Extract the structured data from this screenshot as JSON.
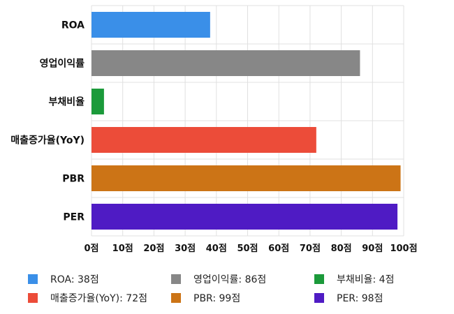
{
  "chart_data": {
    "type": "bar",
    "orientation": "horizontal",
    "categories": [
      "ROA",
      "영업이익률",
      "부채비율",
      "매출증가율(YoY)",
      "PBR",
      "PER"
    ],
    "values": [
      38,
      86,
      4,
      72,
      99,
      98
    ],
    "colors": [
      "#3a8fe8",
      "#878787",
      "#1b9a3a",
      "#ec4c39",
      "#cc7416",
      "#4f1bc4"
    ],
    "xlim": [
      0,
      100
    ],
    "xticks": [
      0,
      10,
      20,
      30,
      40,
      50,
      60,
      70,
      80,
      90,
      100
    ],
    "tick_suffix": "점",
    "grid": true,
    "legend_position": "bottom",
    "legend": [
      {
        "label": "ROA: 38점",
        "color": "#3a8fe8"
      },
      {
        "label": "영업이익률: 86점",
        "color": "#878787"
      },
      {
        "label": "부채비율: 4점",
        "color": "#1b9a3a"
      },
      {
        "label": "매출증가율(YoY): 72점",
        "color": "#ec4c39"
      },
      {
        "label": "PBR: 99점",
        "color": "#cc7416"
      },
      {
        "label": "PER: 98점",
        "color": "#4f1bc4"
      }
    ]
  }
}
